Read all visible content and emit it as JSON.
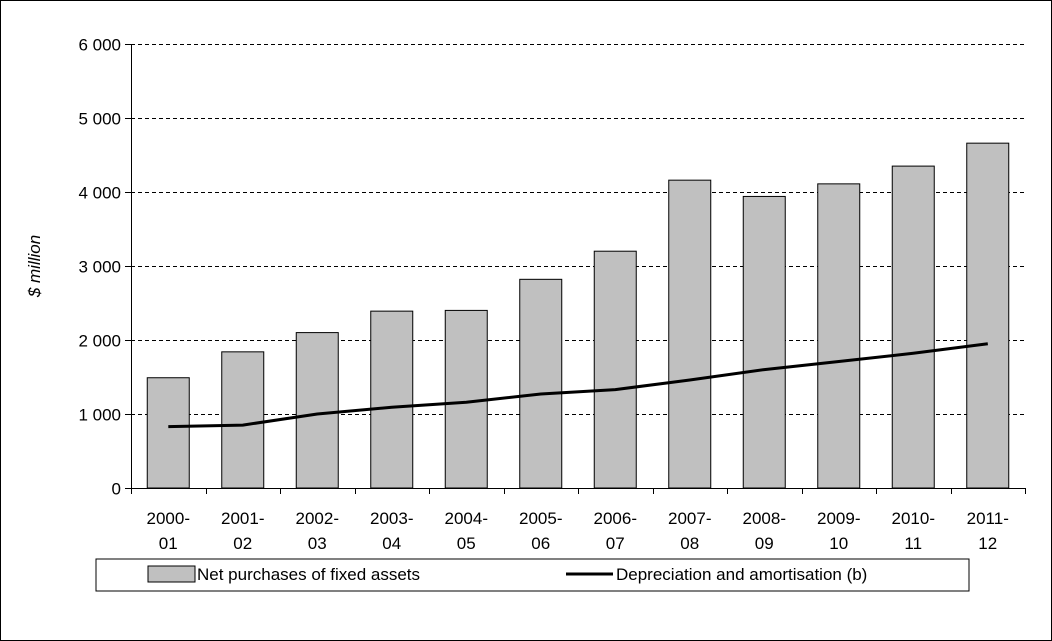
{
  "chart_data": {
    "type": "bar",
    "title": "",
    "xlabel": "",
    "ylabel": "$ million",
    "ylim": [
      0,
      6000
    ],
    "yticks": [
      0,
      1000,
      2000,
      3000,
      4000,
      5000,
      6000
    ],
    "ytick_labels": [
      "0",
      "1 000",
      "2 000",
      "3 000",
      "4 000",
      "5 000",
      "6 000"
    ],
    "grid": "horizontal dashed",
    "legend_position": "bottom",
    "categories": [
      [
        "2000-",
        "01"
      ],
      [
        "2001-",
        "02"
      ],
      [
        "2002-",
        "03"
      ],
      [
        "2003-",
        "04"
      ],
      [
        "2004-",
        "05"
      ],
      [
        "2005-",
        "06"
      ],
      [
        "2006-",
        "07"
      ],
      [
        "2007-",
        "08"
      ],
      [
        "2008-",
        "09"
      ],
      [
        "2009-",
        "10"
      ],
      [
        "2010-",
        "11"
      ],
      [
        "2011-",
        "12"
      ]
    ],
    "series": [
      {
        "name": "Net purchases of fixed assets",
        "kind": "bar",
        "color": "#c0c0c0",
        "values": [
          1490,
          1840,
          2100,
          2390,
          2400,
          2820,
          3200,
          4160,
          3940,
          4110,
          4350,
          4660
        ]
      },
      {
        "name": "Depreciation and amortisation (b)",
        "kind": "line",
        "color": "#000000",
        "values": [
          830,
          850,
          1000,
          1090,
          1160,
          1270,
          1330,
          1460,
          1600,
          1710,
          1820,
          1950
        ]
      }
    ]
  }
}
